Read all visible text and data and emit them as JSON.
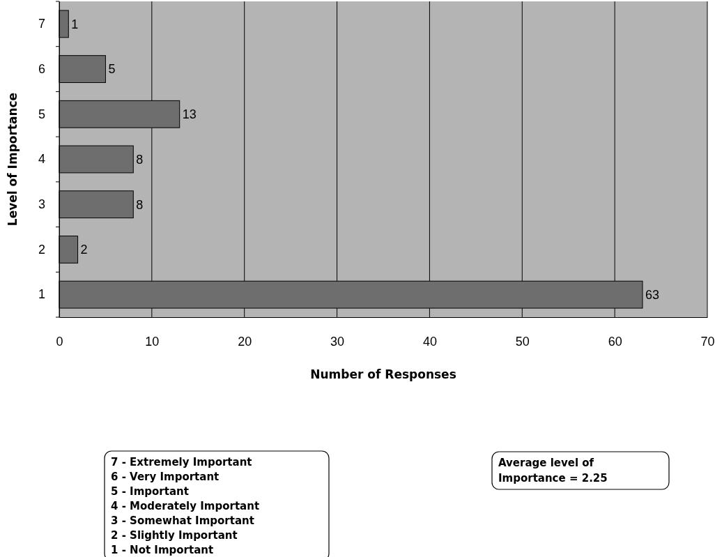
{
  "chart_data": {
    "type": "bar",
    "orientation": "horizontal",
    "categories": [
      "7",
      "6",
      "5",
      "4",
      "3",
      "2",
      "1"
    ],
    "values": [
      1,
      5,
      13,
      8,
      8,
      2,
      63
    ],
    "color": "#6e6e6e",
    "data_labels": true,
    "xlim": [
      0,
      70
    ],
    "xticks": [
      0,
      10,
      20,
      30,
      40,
      50,
      60,
      70
    ],
    "grid": "x",
    "xlabel": "Number of Responses",
    "ylabel": "Level of Importance",
    "annotations": [
      "7 - Extremely Important\n6 - Very Important\n5 - Important\n4 - Moderately Important\n3 - Somewhat Important\n2 - Slightly Important\n1 - Not Important",
      "Average level of\nImportance = 2.25"
    ]
  }
}
